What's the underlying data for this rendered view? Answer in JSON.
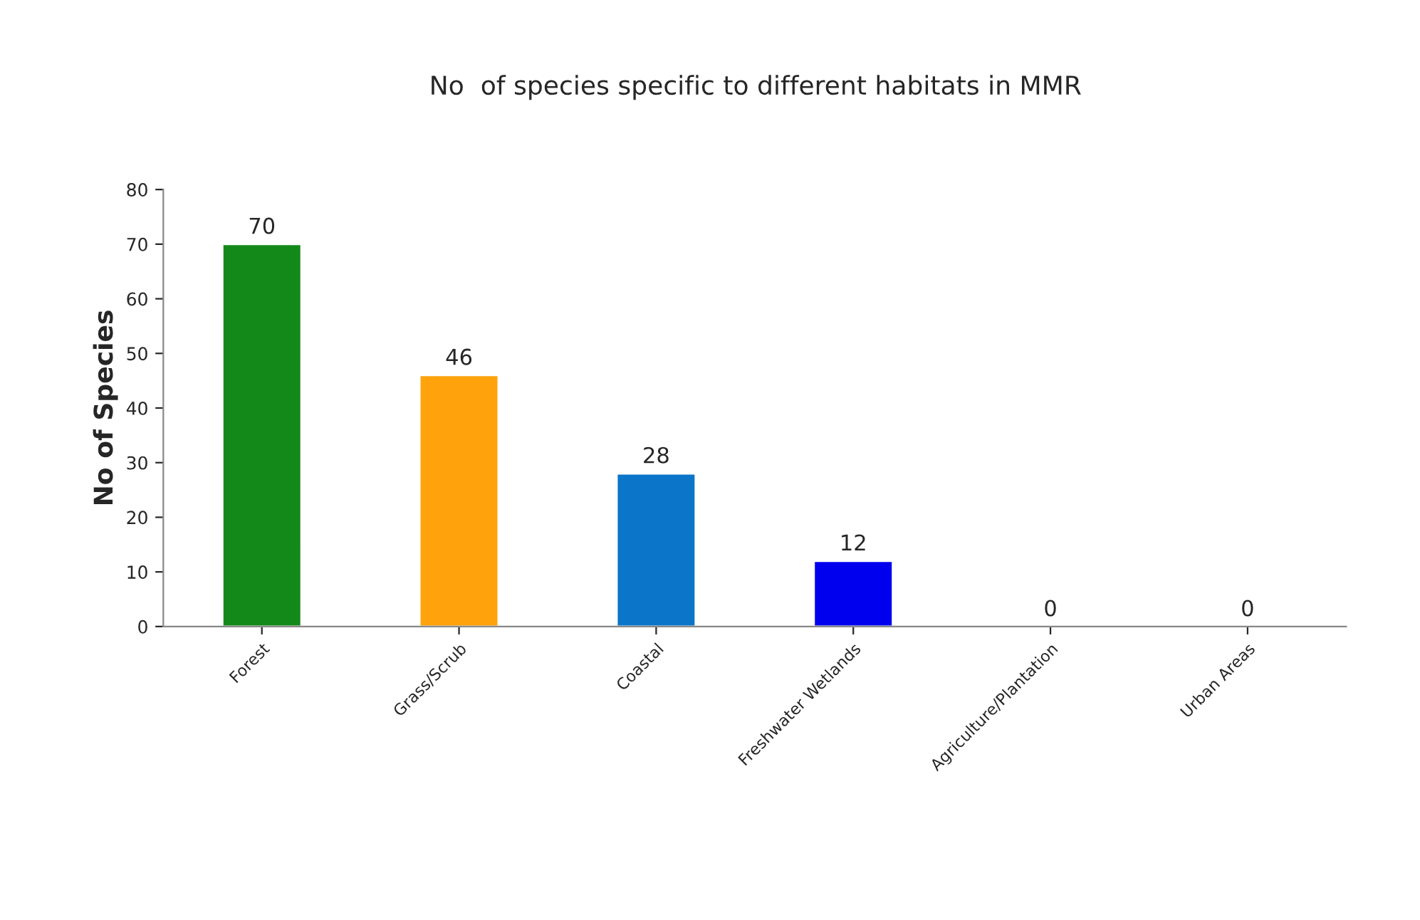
{
  "chart_data": {
    "type": "bar",
    "title": "No  of species specific to different habitats in MMR",
    "ylabel": "No of Species",
    "categories": [
      "Forest",
      "Grass/Scrub",
      "Coastal",
      "Freshwater Wetlands",
      "Agriculture/Plantation",
      "Urban Areas"
    ],
    "values": [
      70,
      46,
      28,
      12,
      0,
      0
    ],
    "colors": [
      "#13891a",
      "#ffa20c",
      "#0a75c9",
      "#0000ee",
      null,
      null
    ],
    "ylim": [
      0,
      80
    ],
    "yticks": [
      0,
      10,
      20,
      30,
      40,
      50,
      60,
      70,
      80
    ],
    "grid": false,
    "data_labels": true
  }
}
